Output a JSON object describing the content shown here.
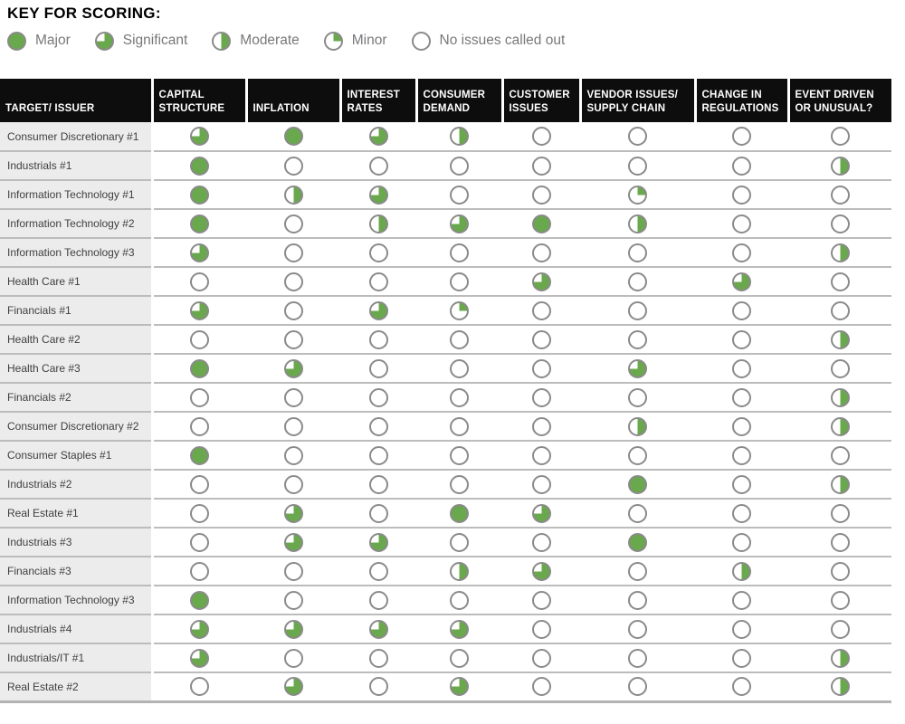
{
  "colors": {
    "green": "#69a84c",
    "ring_gray": "#8a8a8a",
    "header_bg": "#0d0d0d",
    "label_column_bg": "#ececec",
    "separator": "#bcbcbc",
    "key_text": "#77787b"
  },
  "key": {
    "title": "KEY FOR SCORING:",
    "items": [
      {
        "label": "Major",
        "level": "major"
      },
      {
        "label": "Significant",
        "level": "significant"
      },
      {
        "label": "Moderate",
        "level": "moderate"
      },
      {
        "label": "Minor",
        "level": "minor"
      },
      {
        "label": "No issues called out",
        "level": "none"
      }
    ]
  },
  "table": {
    "columns": [
      "TARGET/ ISSUER",
      "CAPITAL STRUCTURE",
      "INFLATION",
      "INTEREST RATES",
      "CONSUMER DEMAND",
      "CUSTOMER ISSUES",
      "VENDOR ISSUES/ SUPPLY CHAIN",
      "CHANGE IN REGULATIONS",
      "EVENT DRIVEN OR UNUSUAL?"
    ],
    "rows": [
      {
        "label": "Consumer Discretionary #1",
        "scores": [
          "significant",
          "major",
          "significant",
          "moderate",
          "none",
          "none",
          "none",
          "none"
        ]
      },
      {
        "label": "Industrials #1",
        "scores": [
          "major",
          "none",
          "none",
          "none",
          "none",
          "none",
          "none",
          "moderate"
        ]
      },
      {
        "label": "Information Technology #1",
        "scores": [
          "major",
          "moderate",
          "significant",
          "none",
          "none",
          "minor",
          "none",
          "none"
        ]
      },
      {
        "label": "Information Technology #2",
        "scores": [
          "major",
          "none",
          "moderate",
          "significant",
          "major",
          "moderate",
          "none",
          "none"
        ]
      },
      {
        "label": "Information Technology #3",
        "scores": [
          "significant",
          "none",
          "none",
          "none",
          "none",
          "none",
          "none",
          "moderate"
        ]
      },
      {
        "label": "Health Care #1",
        "scores": [
          "none",
          "none",
          "none",
          "none",
          "significant",
          "none",
          "significant",
          "none"
        ]
      },
      {
        "label": "Financials #1",
        "scores": [
          "significant",
          "none",
          "significant",
          "minor",
          "none",
          "none",
          "none",
          "none"
        ]
      },
      {
        "label": "Health Care #2",
        "scores": [
          "none",
          "none",
          "none",
          "none",
          "none",
          "none",
          "none",
          "moderate"
        ]
      },
      {
        "label": "Health Care #3",
        "scores": [
          "major",
          "significant",
          "none",
          "none",
          "none",
          "significant",
          "none",
          "none"
        ]
      },
      {
        "label": "Financials #2",
        "scores": [
          "none",
          "none",
          "none",
          "none",
          "none",
          "none",
          "none",
          "moderate"
        ]
      },
      {
        "label": "Consumer Discretionary #2",
        "scores": [
          "none",
          "none",
          "none",
          "none",
          "none",
          "moderate",
          "none",
          "moderate"
        ]
      },
      {
        "label": "Consumer Staples #1",
        "scores": [
          "major",
          "none",
          "none",
          "none",
          "none",
          "none",
          "none",
          "none"
        ]
      },
      {
        "label": "Industrials #2",
        "scores": [
          "none",
          "none",
          "none",
          "none",
          "none",
          "major",
          "none",
          "moderate"
        ]
      },
      {
        "label": "Real Estate #1",
        "scores": [
          "none",
          "significant",
          "none",
          "major",
          "significant",
          "none",
          "none",
          "none"
        ]
      },
      {
        "label": "Industrials #3",
        "scores": [
          "none",
          "significant",
          "significant",
          "none",
          "none",
          "major",
          "none",
          "none"
        ]
      },
      {
        "label": "Financials #3",
        "scores": [
          "none",
          "none",
          "none",
          "moderate",
          "significant",
          "none",
          "moderate",
          "none"
        ]
      },
      {
        "label": "Information Technology #3",
        "scores": [
          "major",
          "none",
          "none",
          "none",
          "none",
          "none",
          "none",
          "none"
        ]
      },
      {
        "label": "Industrials #4",
        "scores": [
          "significant",
          "significant",
          "significant",
          "significant",
          "none",
          "none",
          "none",
          "none"
        ]
      },
      {
        "label": "Industrials/IT #1",
        "scores": [
          "significant",
          "none",
          "none",
          "none",
          "none",
          "none",
          "none",
          "moderate"
        ]
      },
      {
        "label": "Real Estate #2",
        "scores": [
          "none",
          "significant",
          "none",
          "significant",
          "none",
          "none",
          "none",
          "moderate"
        ]
      }
    ]
  }
}
